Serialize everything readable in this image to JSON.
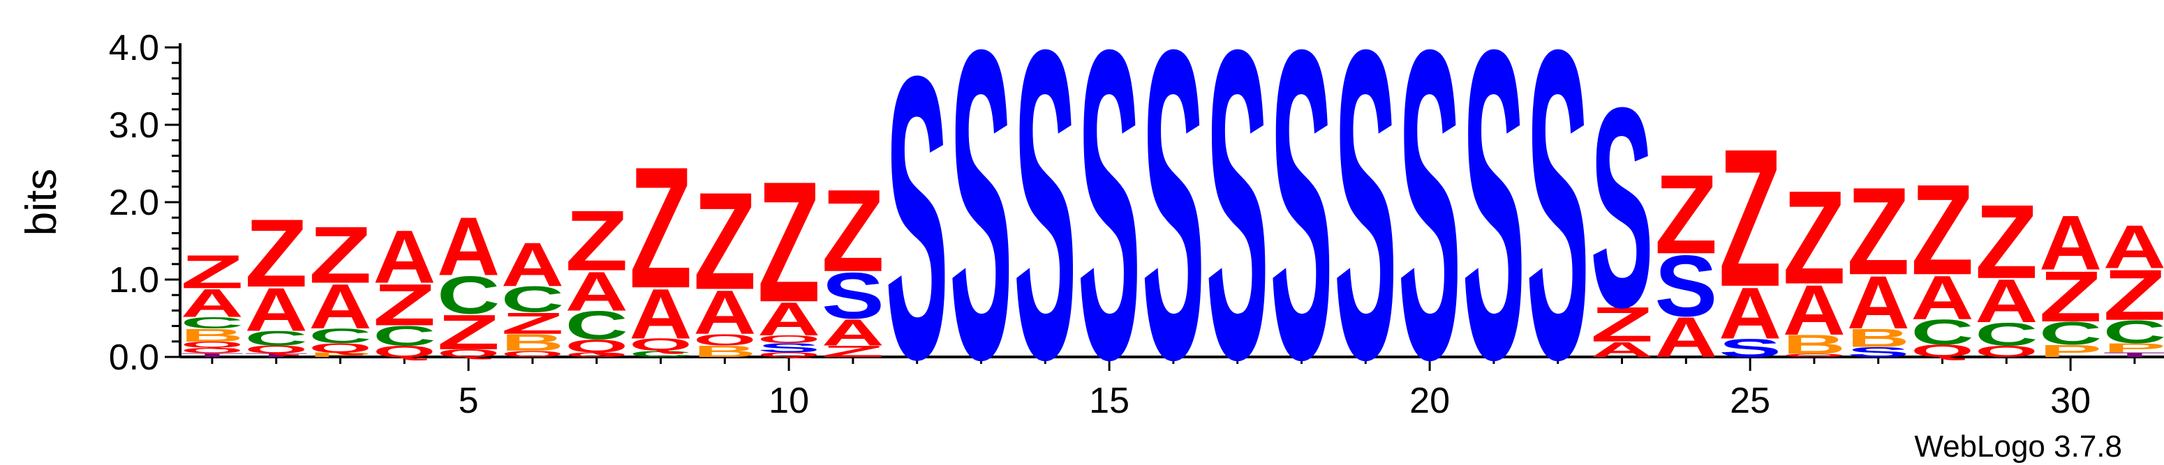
{
  "chart_data": {
    "type": "sequence-logo",
    "ylabel": "bits",
    "ylim": [
      0,
      4.0
    ],
    "y_ticks": [
      "0.0",
      "1.0",
      "2.0",
      "3.0",
      "4.0"
    ],
    "x_tick_labels": [
      "5",
      "10",
      "15",
      "20",
      "25",
      "30"
    ],
    "x_tick_positions": [
      5,
      10,
      15,
      20,
      25,
      30
    ],
    "footer": "WebLogo 3.7.8",
    "colors": {
      "Z": "#ff0000",
      "A": "#ff0000",
      "S": "#0000ff",
      "C": "#008000",
      "B": "#ff8c00",
      "Q": "#ff0000",
      "P": "#ff8c00",
      "O": "#ff0000",
      "T": "#800080"
    },
    "positions": [
      {
        "pos": 1,
        "stack": [
          [
            "T",
            0.05
          ],
          [
            "O",
            0.07
          ],
          [
            "Q",
            0.08
          ],
          [
            "B",
            0.17
          ],
          [
            "C",
            0.15
          ],
          [
            "A",
            0.37
          ],
          [
            "Z",
            0.44
          ]
        ]
      },
      {
        "pos": 2,
        "stack": [
          [
            "T",
            0.05
          ],
          [
            "Q",
            0.1
          ],
          [
            "C",
            0.19
          ],
          [
            "A",
            0.57
          ],
          [
            "Z",
            0.9
          ]
        ]
      },
      {
        "pos": 3,
        "stack": [
          [
            "P",
            0.06
          ],
          [
            "Q",
            0.12
          ],
          [
            "C",
            0.19
          ],
          [
            "A",
            0.59
          ],
          [
            "Z",
            0.75
          ]
        ]
      },
      {
        "pos": 4,
        "stack": [
          [
            "Q",
            0.15
          ],
          [
            "C",
            0.26
          ],
          [
            "Z",
            0.55
          ],
          [
            "A",
            0.7
          ]
        ]
      },
      {
        "pos": 5,
        "stack": [
          [
            "Q",
            0.1
          ],
          [
            "Z",
            0.46
          ],
          [
            "C",
            0.5
          ],
          [
            "A",
            0.77
          ]
        ]
      },
      {
        "pos": 6,
        "stack": [
          [
            "O",
            0.08
          ],
          [
            "B",
            0.22
          ],
          [
            "Z",
            0.28
          ],
          [
            "C",
            0.34
          ],
          [
            "A",
            0.58
          ]
        ]
      },
      {
        "pos": 7,
        "stack": [
          [
            "O",
            0.06
          ],
          [
            "Q",
            0.17
          ],
          [
            "C",
            0.37
          ],
          [
            "A",
            0.52
          ],
          [
            "Z",
            0.8
          ]
        ]
      },
      {
        "pos": 8,
        "stack": [
          [
            "C",
            0.08
          ],
          [
            "Q",
            0.16
          ],
          [
            "A",
            0.66
          ],
          [
            "Z",
            1.61
          ]
        ]
      },
      {
        "pos": 9,
        "stack": [
          [
            "B",
            0.15
          ],
          [
            "O",
            0.15
          ],
          [
            "A",
            0.58
          ],
          [
            "Z",
            1.29
          ]
        ]
      },
      {
        "pos": 10,
        "stack": [
          [
            "Q",
            0.06
          ],
          [
            "S",
            0.12
          ],
          [
            "O",
            0.1
          ],
          [
            "A",
            0.44
          ],
          [
            "Z",
            1.6
          ]
        ]
      },
      {
        "pos": 11,
        "stack": [
          [
            "Z",
            0.15
          ],
          [
            "A",
            0.35
          ],
          [
            "S",
            0.61
          ],
          [
            "Z",
            1.09
          ]
        ]
      },
      {
        "pos": 12,
        "stack": [
          [
            "S",
            3.75
          ]
        ]
      },
      {
        "pos": 13,
        "stack": [
          [
            "S",
            4.1
          ]
        ]
      },
      {
        "pos": 14,
        "stack": [
          [
            "S",
            4.1
          ]
        ]
      },
      {
        "pos": 15,
        "stack": [
          [
            "S",
            4.1
          ]
        ]
      },
      {
        "pos": 16,
        "stack": [
          [
            "S",
            4.1
          ]
        ]
      },
      {
        "pos": 17,
        "stack": [
          [
            "S",
            4.1
          ]
        ]
      },
      {
        "pos": 18,
        "stack": [
          [
            "S",
            4.1
          ]
        ]
      },
      {
        "pos": 19,
        "stack": [
          [
            "S",
            4.1
          ]
        ]
      },
      {
        "pos": 20,
        "stack": [
          [
            "S",
            4.1
          ]
        ]
      },
      {
        "pos": 21,
        "stack": [
          [
            "S",
            4.1
          ]
        ]
      },
      {
        "pos": 22,
        "stack": [
          [
            "S",
            4.1
          ]
        ]
      },
      {
        "pos": 23,
        "stack": [
          [
            "A",
            0.2
          ],
          [
            "Z",
            0.46
          ],
          [
            "S",
            2.65
          ]
        ]
      },
      {
        "pos": 24,
        "stack": [
          [
            "A",
            0.53
          ],
          [
            "S",
            0.81
          ],
          [
            "Z",
            1.05
          ]
        ]
      },
      {
        "pos": 25,
        "stack": [
          [
            "S",
            0.24
          ],
          [
            "A",
            0.68
          ],
          [
            "Z",
            1.83
          ]
        ]
      },
      {
        "pos": 26,
        "stack": [
          [
            "O",
            0.04
          ],
          [
            "B",
            0.25
          ],
          [
            "A",
            0.66
          ],
          [
            "Z",
            1.24
          ]
        ]
      },
      {
        "pos": 27,
        "stack": [
          [
            "S",
            0.13
          ],
          [
            "B",
            0.24
          ],
          [
            "A",
            0.7
          ],
          [
            "Z",
            1.16
          ]
        ]
      },
      {
        "pos": 28,
        "stack": [
          [
            "Q",
            0.16
          ],
          [
            "C",
            0.33
          ],
          [
            "A",
            0.58
          ],
          [
            "Z",
            1.2
          ]
        ]
      },
      {
        "pos": 29,
        "stack": [
          [
            "O",
            0.15
          ],
          [
            "C",
            0.3
          ],
          [
            "A",
            0.57
          ],
          [
            "Z",
            0.98
          ]
        ]
      },
      {
        "pos": 30,
        "stack": [
          [
            "P",
            0.16
          ],
          [
            "C",
            0.3
          ],
          [
            "Z",
            0.67
          ],
          [
            "A",
            0.72
          ]
        ]
      },
      {
        "pos": 31,
        "stack": [
          [
            "T",
            0.06
          ],
          [
            "P",
            0.12
          ],
          [
            "C",
            0.3
          ],
          [
            "Z",
            0.67
          ],
          [
            "A",
            0.57
          ]
        ]
      }
    ]
  }
}
